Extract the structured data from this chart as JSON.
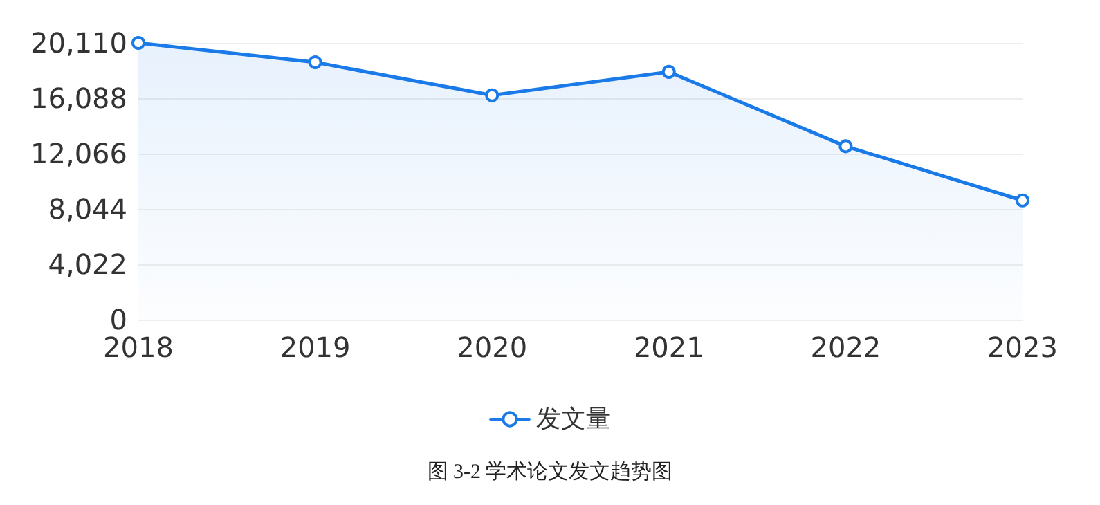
{
  "chart_data": {
    "type": "area",
    "categories": [
      "2018",
      "2019",
      "2020",
      "2021",
      "2022",
      "2023"
    ],
    "series": [
      {
        "name": "发文量",
        "color": "#1a7ae8",
        "values": [
          20110,
          18700,
          16300,
          18000,
          12600,
          8660
        ]
      }
    ],
    "ylim": [
      0,
      20110
    ],
    "yticks": [
      {
        "value": 0,
        "label": "0"
      },
      {
        "value": 4022,
        "label": "4,022"
      },
      {
        "value": 8044,
        "label": "8,044"
      },
      {
        "value": 12066,
        "label": "12,066"
      },
      {
        "value": 16088,
        "label": "16,088"
      },
      {
        "value": 20110,
        "label": "20,110"
      }
    ],
    "grid": "y",
    "legend": "bottom",
    "marker": "circle",
    "line_style": "solid",
    "annotations": [
      "图 3-2 学术论文发文趋势图"
    ]
  }
}
